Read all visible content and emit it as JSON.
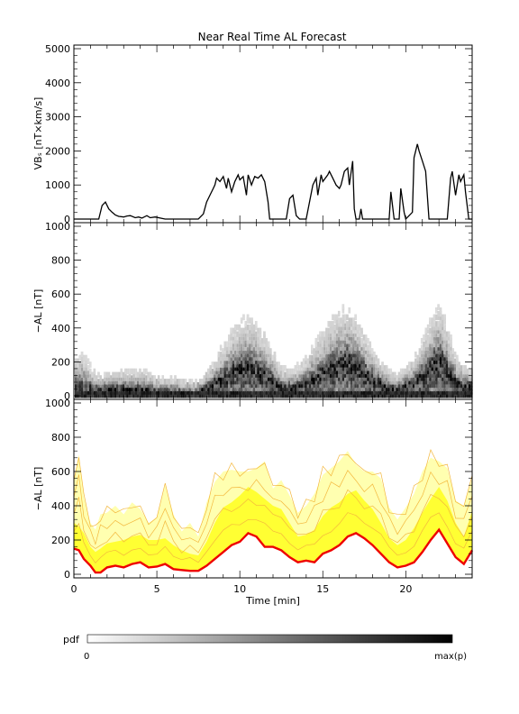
{
  "title": "Near Real Time AL Forecast",
  "colors": {
    "trace": "#000000",
    "median": "#ee0000",
    "band_inner": "#ffff33",
    "band_outer": "#ffffb0",
    "spread_lines": "#f3b73d"
  },
  "colorbar": {
    "label": "pdf",
    "min_label": "0",
    "max_label": "max(p)"
  },
  "chart_data": [
    {
      "type": "line",
      "panel": "top",
      "ylabel": "VBₛ [nT×km/s]",
      "xlim": [
        0,
        24
      ],
      "ylim": [
        0,
        5000
      ],
      "yticks": [
        "0",
        "1000",
        "2000",
        "3000",
        "4000",
        "5000"
      ],
      "series": [
        {
          "x": [
            0,
            1.5,
            1.7,
            1.9,
            2.1,
            2.3,
            2.5,
            2.7,
            3.0,
            3.2,
            3.4,
            3.7,
            3.9,
            4.1,
            4.4,
            4.6,
            4.9,
            5.2,
            5.5,
            6.0,
            7.5,
            7.8,
            8.0,
            8.2,
            8.4,
            8.5,
            8.6,
            8.8,
            9.0,
            9.2,
            9.3,
            9.5,
            9.7,
            9.9,
            10.0,
            10.2,
            10.4,
            10.5,
            10.7,
            10.9,
            11.1,
            11.3,
            11.5,
            11.7,
            11.8,
            12.0,
            12.5,
            12.8,
            13.0,
            13.2,
            13.4,
            13.6,
            14.0,
            14.2,
            14.4,
            14.6,
            14.7,
            14.9,
            15.0,
            15.3,
            15.4,
            15.6,
            15.8,
            16.0,
            16.1,
            16.3,
            16.5,
            16.6,
            16.8,
            16.9,
            17.0,
            17.2,
            17.3,
            17.4,
            17.7,
            18.0,
            19.0,
            19.1,
            19.3,
            19.6,
            19.7,
            19.9,
            20.0,
            20.4,
            20.5,
            20.7,
            20.8,
            21.0,
            21.2,
            21.4,
            21.6,
            21.8,
            22.0,
            22.5,
            22.7,
            22.8,
            23.0,
            23.2,
            23.3,
            23.5,
            23.6,
            23.8,
            24.0
          ],
          "y": [
            0,
            0,
            400,
            500,
            300,
            200,
            120,
            80,
            60,
            90,
            100,
            40,
            60,
            30,
            100,
            40,
            60,
            30,
            0,
            0,
            0,
            150,
            500,
            700,
            900,
            1000,
            1200,
            1100,
            1250,
            900,
            1200,
            800,
            1100,
            1300,
            1150,
            1250,
            700,
            1300,
            1000,
            1250,
            1200,
            1300,
            1100,
            500,
            0,
            0,
            0,
            0,
            600,
            700,
            100,
            0,
            0,
            500,
            1000,
            1200,
            700,
            1300,
            1100,
            1300,
            1400,
            1200,
            1000,
            900,
            1000,
            1400,
            1500,
            1000,
            1700,
            300,
            0,
            0,
            300,
            0,
            0,
            0,
            0,
            800,
            0,
            0,
            900,
            200,
            0,
            200,
            1800,
            2200,
            2000,
            1700,
            1400,
            0,
            0,
            0,
            0,
            0,
            1200,
            1400,
            700,
            1300,
            1100,
            1300,
            800,
            0,
            0
          ]
        }
      ]
    },
    {
      "type": "heatmap",
      "panel": "middle",
      "ylabel": "−AL [nT]",
      "xlim": [
        0,
        24
      ],
      "ylim": [
        0,
        1000
      ],
      "yticks": [
        "0",
        "200",
        "400",
        "600",
        "800",
        "1000"
      ],
      "x": [
        0,
        0.5,
        1,
        1.5,
        2,
        3,
        4,
        5,
        6,
        7,
        7.5,
        8,
        8.5,
        9,
        9.5,
        10,
        10.5,
        11,
        11.5,
        12,
        12.5,
        13,
        13.5,
        14,
        14.5,
        15,
        15.5,
        16,
        16.5,
        17,
        17.5,
        18,
        18.5,
        19,
        19.5,
        20,
        20.5,
        21,
        21.5,
        22,
        22.5,
        23,
        23.5,
        24
      ],
      "center": [
        60,
        60,
        45,
        35,
        40,
        45,
        40,
        30,
        30,
        25,
        30,
        50,
        80,
        110,
        140,
        160,
        170,
        150,
        130,
        80,
        50,
        50,
        60,
        80,
        110,
        140,
        170,
        200,
        210,
        180,
        140,
        100,
        70,
        50,
        40,
        60,
        80,
        130,
        180,
        220,
        150,
        80,
        60,
        60
      ],
      "spread": [
        180,
        200,
        130,
        90,
        100,
        110,
        120,
        90,
        80,
        60,
        70,
        110,
        160,
        220,
        280,
        300,
        320,
        290,
        260,
        200,
        120,
        110,
        130,
        170,
        230,
        280,
        320,
        330,
        340,
        300,
        250,
        180,
        140,
        110,
        100,
        130,
        170,
        230,
        300,
        360,
        260,
        160,
        120,
        110
      ]
    },
    {
      "type": "area",
      "panel": "bottom",
      "xlabel": "Time [min]",
      "ylabel": "−AL [nT]",
      "xlim": [
        0,
        24
      ],
      "ylim": [
        0,
        1000
      ],
      "xticks": [
        "0",
        "5",
        "10",
        "15",
        "20"
      ],
      "yticks": [
        "0",
        "200",
        "400",
        "600",
        "800",
        "1000"
      ],
      "x": [
        0,
        0.3,
        0.6,
        1,
        1.3,
        1.6,
        2,
        2.5,
        3,
        3.5,
        4,
        4.5,
        5,
        5.5,
        6,
        6.5,
        7,
        7.5,
        8,
        8.5,
        9,
        9.5,
        10,
        10.5,
        11,
        11.5,
        12,
        12.5,
        13,
        13.5,
        14,
        14.5,
        15,
        15.5,
        16,
        16.5,
        17,
        17.5,
        18,
        18.5,
        19,
        19.5,
        20,
        20.5,
        21,
        21.5,
        22,
        22.5,
        23,
        23.5,
        24
      ],
      "median": [
        150,
        140,
        90,
        50,
        10,
        10,
        40,
        50,
        40,
        60,
        70,
        40,
        45,
        60,
        30,
        25,
        20,
        20,
        50,
        90,
        130,
        170,
        190,
        240,
        220,
        160,
        160,
        140,
        100,
        70,
        80,
        70,
        120,
        140,
        170,
        220,
        240,
        210,
        170,
        120,
        70,
        40,
        50,
        70,
        130,
        200,
        260,
        180,
        100,
        60,
        140
      ],
      "inner_upper": [
        300,
        280,
        240,
        160,
        130,
        150,
        180,
        190,
        200,
        220,
        230,
        200,
        200,
        210,
        170,
        140,
        120,
        110,
        190,
        300,
        390,
        420,
        460,
        510,
        480,
        440,
        400,
        380,
        300,
        220,
        230,
        260,
        340,
        390,
        420,
        470,
        490,
        430,
        380,
        300,
        210,
        170,
        200,
        270,
        360,
        440,
        510,
        430,
        300,
        220,
        370
      ],
      "outer_upper": [
        550,
        700,
        450,
        300,
        260,
        350,
        360,
        400,
        350,
        420,
        380,
        300,
        330,
        520,
        350,
        250,
        300,
        220,
        420,
        540,
        600,
        610,
        600,
        600,
        620,
        660,
        500,
        550,
        460,
        360,
        400,
        470,
        580,
        620,
        660,
        720,
        640,
        600,
        600,
        560,
        390,
        320,
        390,
        470,
        600,
        680,
        660,
        620,
        430,
        400,
        560
      ]
    }
  ]
}
